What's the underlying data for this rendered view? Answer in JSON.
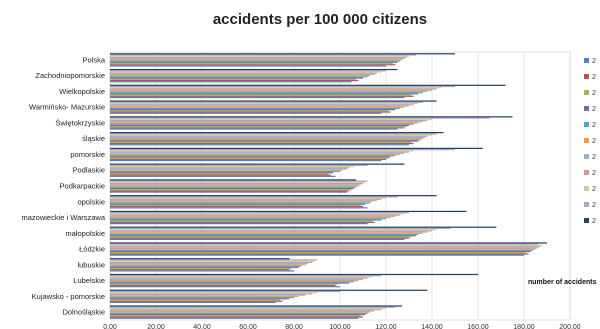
{
  "chart_data": {
    "type": "bar",
    "orientation": "horizontal",
    "title": "accidents per 100 000 citizens",
    "xlabel": "number of accidents",
    "ylabel": "",
    "xlim": [
      0,
      200
    ],
    "xticks": [
      "0.00",
      "20.00",
      "40.00",
      "60.00",
      "80.00",
      "100.00",
      "120.00",
      "140.00",
      "160.00",
      "180.00",
      "200.00"
    ],
    "grid": true,
    "legend_position": "right",
    "categories": [
      "Dolnośląskie",
      "Kujawsko - pomorskie",
      "Lubelskie",
      "lubuskie",
      "Łódzkie",
      "małopolskie",
      "mazowieckie i Warszawa",
      "opolskie",
      "Podkarpackie",
      "Podlaskie",
      "pomorskie",
      "śląskie",
      "Świętokrzyskie",
      "Warmińsko- Mazurskie",
      "Wielkopolskie",
      "Zachodniopomorskie",
      "Polska"
    ],
    "series": [
      {
        "legend_label": "2",
        "color": "#4f81bd",
        "values": [
          108,
          72,
          100,
          80,
          180,
          128,
          112,
          112,
          103,
          98,
          118,
          130,
          125,
          118,
          128,
          105,
          120
        ]
      },
      {
        "legend_label": "2",
        "color": "#c0504d",
        "values": [
          110,
          75,
          98,
          78,
          182,
          130,
          115,
          110,
          104,
          96,
          120,
          132,
          128,
          122,
          132,
          108,
          124
        ]
      },
      {
        "legend_label": "2",
        "color": "#9bbb59",
        "values": [
          109,
          74,
          99,
          79,
          181,
          131,
          114,
          109,
          105,
          95,
          121,
          131,
          129,
          121,
          131,
          107,
          123
        ]
      },
      {
        "legend_label": "2",
        "color": "#8064a2",
        "values": [
          111,
          78,
          104,
          82,
          183,
          133,
          118,
          111,
          106,
          97,
          122,
          134,
          130,
          124,
          134,
          110,
          125
        ]
      },
      {
        "legend_label": "2",
        "color": "#4bacc6",
        "values": [
          112,
          80,
          106,
          83,
          184,
          134,
          120,
          113,
          107,
          100,
          124,
          135,
          132,
          126,
          136,
          112,
          126
        ]
      },
      {
        "legend_label": "2",
        "color": "#f79646",
        "values": [
          113,
          82,
          108,
          85,
          185,
          136,
          122,
          114,
          108,
          101,
          126,
          136,
          134,
          128,
          138,
          113,
          127
        ]
      },
      {
        "legend_label": "2",
        "color": "#95b3d7",
        "values": [
          115,
          85,
          110,
          86,
          186,
          138,
          124,
          116,
          109,
          103,
          128,
          137,
          136,
          130,
          140,
          115,
          128
        ]
      },
      {
        "legend_label": "2",
        "color": "#d99694",
        "values": [
          118,
          88,
          112,
          88,
          187,
          140,
          126,
          118,
          110,
          104,
          130,
          138,
          138,
          132,
          142,
          116,
          129
        ]
      },
      {
        "legend_label": "2",
        "color": "#c3d69b",
        "values": [
          120,
          90,
          114,
          89,
          188,
          142,
          128,
          120,
          111,
          106,
          132,
          140,
          140,
          134,
          144,
          118,
          130
        ]
      },
      {
        "legend_label": "2",
        "color": "#b3a2c7",
        "values": [
          124,
          100,
          118,
          90,
          186,
          148,
          130,
          125,
          112,
          112,
          150,
          142,
          165,
          136,
          150,
          120,
          133
        ]
      },
      {
        "legend_label": "2",
        "color": "#254061",
        "values": [
          127,
          138,
          160,
          78,
          190,
          168,
          155,
          142,
          107,
          128,
          162,
          145,
          175,
          142,
          172,
          125,
          150
        ]
      }
    ]
  }
}
